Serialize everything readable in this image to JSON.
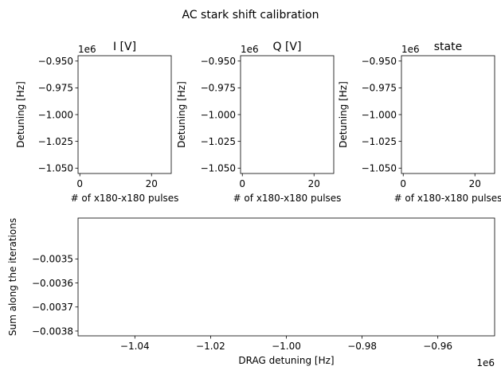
{
  "figure": {
    "suptitle": "AC stark shift calibration"
  },
  "chart_data": [
    {
      "type": "heatmap",
      "title": "I [V]",
      "xlabel": "# of x180-x180 pulses",
      "ylabel": "Detuning [Hz]",
      "xlim": [
        -0.5,
        25.5
      ],
      "ylim": [
        -1055000,
        -945000
      ],
      "y_offset_text": "1e6",
      "xticks": [
        0,
        20
      ],
      "xtick_labels": [
        "0",
        "20"
      ],
      "yticks": [
        -950000,
        -975000,
        -1000000,
        -1025000,
        -1050000
      ],
      "ytick_labels": [
        "−0.950",
        "−0.975",
        "−1.000",
        "−1.025",
        "−1.050"
      ],
      "values": []
    },
    {
      "type": "heatmap",
      "title": "Q [V]",
      "xlabel": "# of x180-x180 pulses",
      "ylabel": "Detuning [Hz]",
      "xlim": [
        -0.5,
        25.5
      ],
      "ylim": [
        -1055000,
        -945000
      ],
      "y_offset_text": "1e6",
      "xticks": [
        0,
        20
      ],
      "xtick_labels": [
        "0",
        "20"
      ],
      "yticks": [
        -950000,
        -975000,
        -1000000,
        -1025000,
        -1050000
      ],
      "ytick_labels": [
        "−0.950",
        "−0.975",
        "−1.000",
        "−1.025",
        "−1.050"
      ],
      "values": []
    },
    {
      "type": "heatmap",
      "title": "state",
      "xlabel": "# of x180-x180 pulses",
      "ylabel": "Detuning [Hz]",
      "xlim": [
        -0.5,
        25.5
      ],
      "ylim": [
        -1055000,
        -945000
      ],
      "y_offset_text": "1e6",
      "xticks": [
        0,
        20
      ],
      "xtick_labels": [
        "0",
        "20"
      ],
      "yticks": [
        -950000,
        -975000,
        -1000000,
        -1025000,
        -1050000
      ],
      "ytick_labels": [
        "−0.950",
        "−0.975",
        "−1.000",
        "−1.025",
        "−1.050"
      ],
      "values": []
    },
    {
      "type": "line",
      "title": "",
      "xlabel": "DRAG detuning [Hz]",
      "ylabel": "Sum along the iterations",
      "xlim": [
        -1055000,
        -945000
      ],
      "ylim": [
        -0.00382,
        -0.00333
      ],
      "x_offset_text": "1e6",
      "xticks": [
        -1040000,
        -1020000,
        -1000000,
        -980000,
        -960000
      ],
      "xtick_labels": [
        "−1.04",
        "−1.02",
        "−1.00",
        "−0.98",
        "−0.96"
      ],
      "yticks": [
        -0.0035,
        -0.0036,
        -0.0037,
        -0.0038
      ],
      "ytick_labels": [
        "−0.0035",
        "−0.0036",
        "−0.0037",
        "−0.0038"
      ],
      "series": [
        {
          "x": [],
          "y": []
        }
      ]
    }
  ]
}
